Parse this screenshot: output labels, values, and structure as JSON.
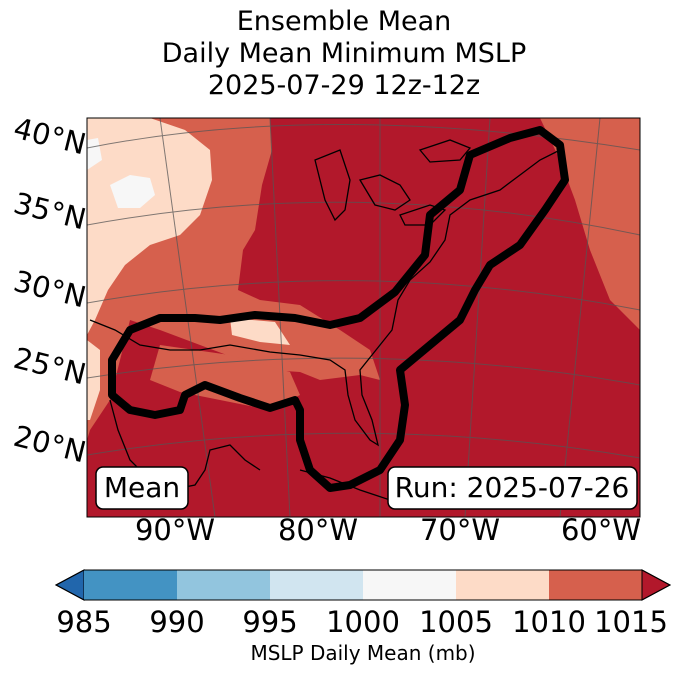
{
  "title": {
    "line1": "Ensemble Mean",
    "line2": "Daily Mean Minimum MSLP",
    "line3": "2025-07-29 12z-12z"
  },
  "map": {
    "lat_labels": [
      "40°N",
      "35°N",
      "30°N",
      "25°N",
      "20°N"
    ],
    "lon_labels": [
      "90°W",
      "80°W",
      "70°W",
      "60°W"
    ],
    "mean_label": "Mean",
    "run_label": "Run: 2025-07-26"
  },
  "colorbar": {
    "ticks": [
      "985",
      "990",
      "995",
      "1000",
      "1005",
      "1010",
      "1015"
    ],
    "label": "MSLP Daily Mean (mb)",
    "colors": [
      "#2166ac",
      "#4393c3",
      "#92c5de",
      "#d1e5f0",
      "#f7f7f7",
      "#fddbc7",
      "#d6604d",
      "#b2182b"
    ]
  },
  "colors": {
    "high": "#b2182b",
    "mid": "#d6604d",
    "low": "#fddbc7",
    "lowest": "#f7f7f7",
    "contour": "#000000"
  }
}
